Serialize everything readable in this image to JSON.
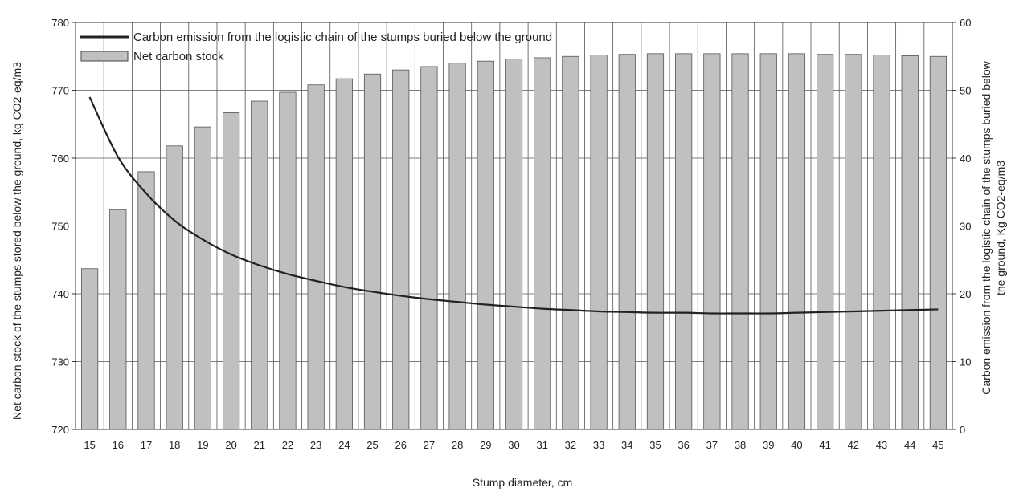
{
  "chart_data": {
    "type": "bar",
    "categories": [
      "15",
      "16",
      "17",
      "18",
      "19",
      "20",
      "21",
      "22",
      "23",
      "24",
      "25",
      "26",
      "27",
      "28",
      "29",
      "30",
      "31",
      "32",
      "33",
      "34",
      "35",
      "36",
      "37",
      "38",
      "39",
      "40",
      "41",
      "42",
      "43",
      "44",
      "45"
    ],
    "xlabel": "Stump diameter, cm",
    "ylabel_left": "Net carbon stock of the stumps stored below the  ground, kg CO2-eq/m3",
    "ylabel_right_line1": "Carbon emission from the logistic chain of the stumps buried below",
    "ylabel_right_line2": "the ground, Kg CO2-eq/m3",
    "ylim_left": [
      720,
      780
    ],
    "yticks_left": [
      "720",
      "730",
      "740",
      "750",
      "760",
      "770",
      "780"
    ],
    "ylim_right": [
      0,
      60
    ],
    "yticks_right": [
      "0",
      "10",
      "20",
      "30",
      "40",
      "50",
      "60"
    ],
    "grid": true,
    "legend_position": "top-left",
    "series": [
      {
        "name": "Net carbon stock",
        "type": "bar",
        "axis": "left",
        "color": "#c0c0c0",
        "values": [
          743.7,
          752.4,
          758.0,
          761.8,
          764.6,
          766.7,
          768.4,
          769.7,
          770.8,
          771.7,
          772.4,
          773.0,
          773.5,
          774.0,
          774.3,
          774.6,
          774.8,
          775.0,
          775.2,
          775.3,
          775.4,
          775.4,
          775.4,
          775.4,
          775.4,
          775.4,
          775.3,
          775.3,
          775.2,
          775.1,
          775.0
        ]
      },
      {
        "name": "Carbon emission from the logistic chain of the stumps buried below the ground",
        "type": "line",
        "axis": "right",
        "color": "#222222",
        "values": [
          49.0,
          40.2,
          34.8,
          30.8,
          28.0,
          25.8,
          24.2,
          22.9,
          21.9,
          21.0,
          20.3,
          19.7,
          19.2,
          18.8,
          18.4,
          18.1,
          17.8,
          17.6,
          17.4,
          17.3,
          17.2,
          17.2,
          17.1,
          17.1,
          17.1,
          17.2,
          17.3,
          17.4,
          17.5,
          17.6,
          17.7
        ]
      }
    ]
  }
}
